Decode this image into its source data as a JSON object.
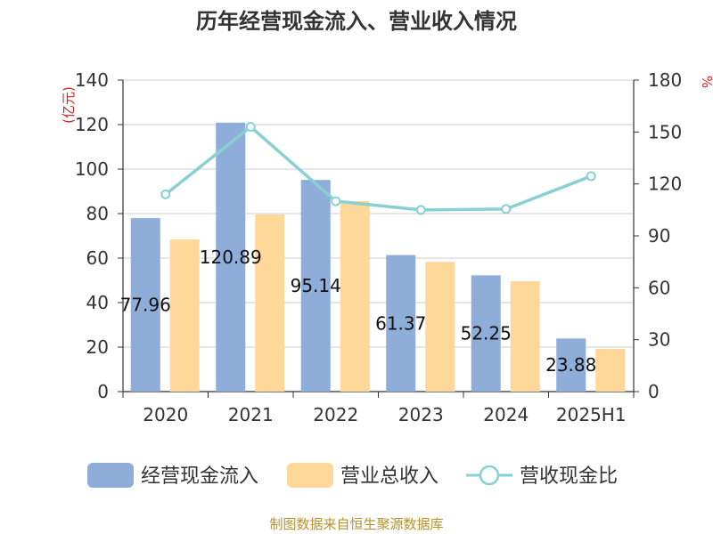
{
  "title": "历年经营现金流入、营业收入情况",
  "footer": "制图数据来自恒生聚源数据库",
  "chart_data": {
    "type": "bar",
    "title": "历年经营现金流入、营业收入情况",
    "categories": [
      "2020",
      "2021",
      "2022",
      "2023",
      "2024",
      "2025H1"
    ],
    "y_left": {
      "unit": "(亿元)",
      "ylim": [
        0,
        140
      ],
      "ticks": [
        "0",
        "20",
        "40",
        "60",
        "80",
        "100",
        "120",
        "140"
      ]
    },
    "y_right": {
      "unit": "%",
      "ylim": [
        0,
        180
      ],
      "ticks": [
        "0",
        "30",
        "60",
        "90",
        "120",
        "150",
        "180"
      ]
    },
    "series": [
      {
        "name": "经营现金流入",
        "kind": "bar",
        "axis": "left",
        "color": "#8eadd9",
        "values": [
          77.96,
          120.89,
          95.14,
          61.37,
          52.25,
          23.88
        ],
        "labels": [
          "77.96",
          "120.89",
          "95.14",
          "61.37",
          "52.25",
          "23.88"
        ]
      },
      {
        "name": "营业总收入",
        "kind": "bar",
        "axis": "left",
        "color": "#fed898",
        "values": [
          68.4,
          79.6,
          85.6,
          58.3,
          49.6,
          19.2
        ]
      },
      {
        "name": "营收现金比",
        "kind": "line",
        "axis": "right",
        "color": "#88d0d4",
        "values": [
          114,
          153,
          110,
          105,
          105.5,
          124.5
        ]
      }
    ],
    "grid": true,
    "legend": "bottom"
  }
}
